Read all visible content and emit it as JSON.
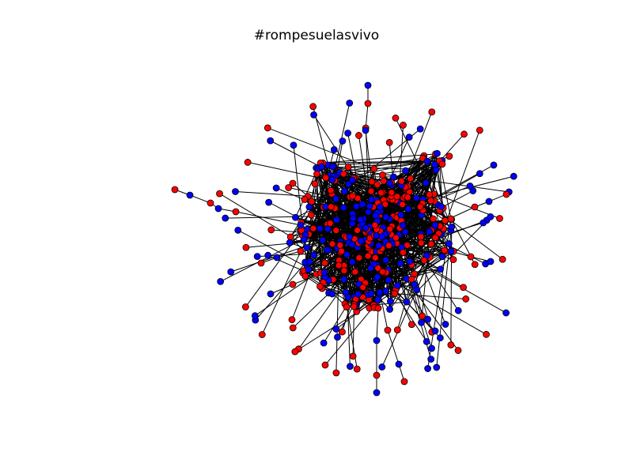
{
  "figure": {
    "title": "#rompesuelasvivo",
    "colors": {
      "red_nodes": "#ff0000",
      "blue_nodes": "#0000ff",
      "edges": "#000000",
      "background": "#ffffff"
    }
  },
  "graph": {
    "type": "network",
    "node_count_visible": 420,
    "node_color_groups": [
      "red",
      "blue"
    ],
    "node_outline_color": "black",
    "edge_color": "black"
  }
}
